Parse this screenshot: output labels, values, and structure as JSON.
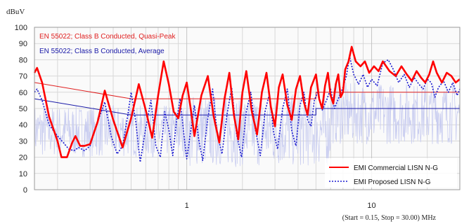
{
  "chart_data": {
    "type": "line",
    "ylabel": "dBuV",
    "xlabel": "(Start = 0.15, Stop = 30.00) MHz",
    "x_scale": "log",
    "xlim": [
      0.15,
      30
    ],
    "ylim": [
      0,
      100
    ],
    "x_ticks": [
      1,
      10
    ],
    "y_ticks": [
      0,
      10,
      20,
      30,
      40,
      50,
      60,
      70,
      80,
      90,
      100
    ],
    "grid": true,
    "colors": {
      "quasi_peak": "#e02020",
      "average": "#1a1aa8",
      "commercial": "#ff0000",
      "proposed": "#1a1ad0",
      "noise": "#c9cdf0",
      "plot_bg": "#fafafa",
      "grid": "#d8d8d8"
    },
    "limit_lines": [
      {
        "name": "EN 55022; Class B Conducted, Quasi-Peak",
        "points": [
          [
            0.15,
            66
          ],
          [
            0.5,
            56
          ],
          [
            5,
            56
          ],
          [
            5,
            60
          ],
          [
            30,
            60
          ]
        ]
      },
      {
        "name": "EN 55022; Class B Conducted, Average",
        "points": [
          [
            0.15,
            56
          ],
          [
            0.5,
            46
          ],
          [
            5,
            46
          ],
          [
            5,
            50
          ],
          [
            30,
            50
          ]
        ]
      }
    ],
    "series": [
      {
        "name": "EMI Commercial LISN N-G",
        "style": "solid",
        "points": [
          [
            0.15,
            72
          ],
          [
            0.155,
            75
          ],
          [
            0.165,
            66
          ],
          [
            0.18,
            45
          ],
          [
            0.2,
            30
          ],
          [
            0.21,
            20
          ],
          [
            0.225,
            20
          ],
          [
            0.24,
            29
          ],
          [
            0.25,
            33
          ],
          [
            0.265,
            27
          ],
          [
            0.28,
            27
          ],
          [
            0.3,
            28
          ],
          [
            0.33,
            42
          ],
          [
            0.36,
            61
          ],
          [
            0.4,
            43
          ],
          [
            0.45,
            26
          ],
          [
            0.5,
            44
          ],
          [
            0.55,
            65
          ],
          [
            0.6,
            49
          ],
          [
            0.65,
            32
          ],
          [
            0.7,
            58
          ],
          [
            0.75,
            79
          ],
          [
            0.8,
            65
          ],
          [
            0.85,
            48
          ],
          [
            0.9,
            44
          ],
          [
            0.95,
            58
          ],
          [
            1.0,
            66
          ],
          [
            1.05,
            50
          ],
          [
            1.1,
            33
          ],
          [
            1.2,
            58
          ],
          [
            1.3,
            70
          ],
          [
            1.4,
            45
          ],
          [
            1.5,
            29
          ],
          [
            1.6,
            56
          ],
          [
            1.7,
            72
          ],
          [
            1.8,
            46
          ],
          [
            1.9,
            31
          ],
          [
            2.0,
            60
          ],
          [
            2.1,
            73
          ],
          [
            2.25,
            48
          ],
          [
            2.4,
            34
          ],
          [
            2.55,
            60
          ],
          [
            2.7,
            72
          ],
          [
            2.85,
            51
          ],
          [
            3.0,
            39
          ],
          [
            3.15,
            63
          ],
          [
            3.3,
            71
          ],
          [
            3.5,
            52
          ],
          [
            3.7,
            43
          ],
          [
            3.9,
            62
          ],
          [
            4.1,
            70
          ],
          [
            4.3,
            54
          ],
          [
            4.5,
            46
          ],
          [
            4.7,
            63
          ],
          [
            5.0,
            71
          ],
          [
            5.2,
            56
          ],
          [
            5.4,
            50
          ],
          [
            5.6,
            64
          ],
          [
            5.8,
            72
          ],
          [
            6.0,
            58
          ],
          [
            6.2,
            53
          ],
          [
            6.4,
            65
          ],
          [
            6.6,
            71
          ],
          [
            6.8,
            57
          ],
          [
            7.0,
            60
          ],
          [
            7.2,
            74
          ],
          [
            7.5,
            79
          ],
          [
            7.8,
            88
          ],
          [
            8.2,
            79
          ],
          [
            8.7,
            76
          ],
          [
            9.2,
            79
          ],
          [
            9.7,
            72
          ],
          [
            10.3,
            76
          ],
          [
            10.9,
            73
          ],
          [
            11.5,
            79
          ],
          [
            12.5,
            73
          ],
          [
            13.5,
            70
          ],
          [
            14.5,
            76
          ],
          [
            15.5,
            71
          ],
          [
            16.5,
            67
          ],
          [
            17.5,
            73
          ],
          [
            18.5,
            69
          ],
          [
            19.5,
            66
          ],
          [
            20.5,
            71
          ],
          [
            21.5,
            79
          ],
          [
            22.5,
            72
          ],
          [
            24.0,
            66
          ],
          [
            25.5,
            72
          ],
          [
            27.0,
            70
          ],
          [
            28.5,
            66
          ],
          [
            30.0,
            68
          ]
        ]
      },
      {
        "name": "EMI Proposed LISN N-G",
        "style": "dotted",
        "points": [
          [
            0.15,
            60
          ],
          [
            0.155,
            62
          ],
          [
            0.165,
            55
          ],
          [
            0.18,
            40
          ],
          [
            0.2,
            33
          ],
          [
            0.215,
            29
          ],
          [
            0.23,
            25
          ],
          [
            0.245,
            24
          ],
          [
            0.26,
            26
          ],
          [
            0.28,
            24
          ],
          [
            0.3,
            27
          ],
          [
            0.33,
            42
          ],
          [
            0.36,
            54
          ],
          [
            0.39,
            33
          ],
          [
            0.42,
            22
          ],
          [
            0.45,
            27
          ],
          [
            0.48,
            46
          ],
          [
            0.5,
            60
          ],
          [
            0.53,
            42
          ],
          [
            0.56,
            17
          ],
          [
            0.6,
            38
          ],
          [
            0.64,
            55
          ],
          [
            0.68,
            27
          ],
          [
            0.72,
            20
          ],
          [
            0.76,
            48
          ],
          [
            0.8,
            37
          ],
          [
            0.84,
            21
          ],
          [
            0.88,
            42
          ],
          [
            0.92,
            56
          ],
          [
            0.96,
            36
          ],
          [
            1.0,
            19
          ],
          [
            1.05,
            36
          ],
          [
            1.1,
            52
          ],
          [
            1.16,
            31
          ],
          [
            1.22,
            18
          ],
          [
            1.3,
            44
          ],
          [
            1.38,
            62
          ],
          [
            1.46,
            35
          ],
          [
            1.55,
            22
          ],
          [
            1.65,
            46
          ],
          [
            1.75,
            63
          ],
          [
            1.86,
            34
          ],
          [
            1.98,
            20
          ],
          [
            2.1,
            48
          ],
          [
            2.22,
            60
          ],
          [
            2.35,
            37
          ],
          [
            2.5,
            21
          ],
          [
            2.65,
            48
          ],
          [
            2.8,
            59
          ],
          [
            2.95,
            35
          ],
          [
            3.1,
            25
          ],
          [
            3.3,
            50
          ],
          [
            3.5,
            62
          ],
          [
            3.7,
            36
          ],
          [
            3.9,
            27
          ],
          [
            4.1,
            52
          ],
          [
            4.3,
            60
          ],
          [
            4.5,
            43
          ],
          [
            4.7,
            39
          ],
          [
            4.9,
            55
          ],
          [
            5.1,
            60
          ],
          [
            5.4,
            49
          ],
          [
            5.7,
            55
          ],
          [
            6.0,
            62
          ],
          [
            6.3,
            50
          ],
          [
            6.6,
            56
          ],
          [
            7.0,
            63
          ],
          [
            7.3,
            70
          ],
          [
            7.6,
            82
          ],
          [
            8.0,
            71
          ],
          [
            8.5,
            65
          ],
          [
            9.0,
            71
          ],
          [
            9.5,
            63
          ],
          [
            10.0,
            68
          ],
          [
            10.7,
            64
          ],
          [
            11.5,
            78
          ],
          [
            12.3,
            80
          ],
          [
            13.1,
            74
          ],
          [
            14.0,
            66
          ],
          [
            15.0,
            71
          ],
          [
            16.0,
            63
          ],
          [
            17.0,
            69
          ],
          [
            18.0,
            65
          ],
          [
            19.0,
            62
          ],
          [
            20.0,
            68
          ],
          [
            21.0,
            66
          ],
          [
            22.0,
            57
          ],
          [
            23.0,
            63
          ],
          [
            24.5,
            67
          ],
          [
            26.0,
            60
          ],
          [
            27.5,
            66
          ],
          [
            29.0,
            58
          ],
          [
            30.0,
            62
          ]
        ]
      }
    ],
    "legend": {
      "placement": "bottom-right",
      "entries": [
        "EMI Commercial LISN N-G",
        "EMI Proposed LISN N-G"
      ]
    }
  }
}
